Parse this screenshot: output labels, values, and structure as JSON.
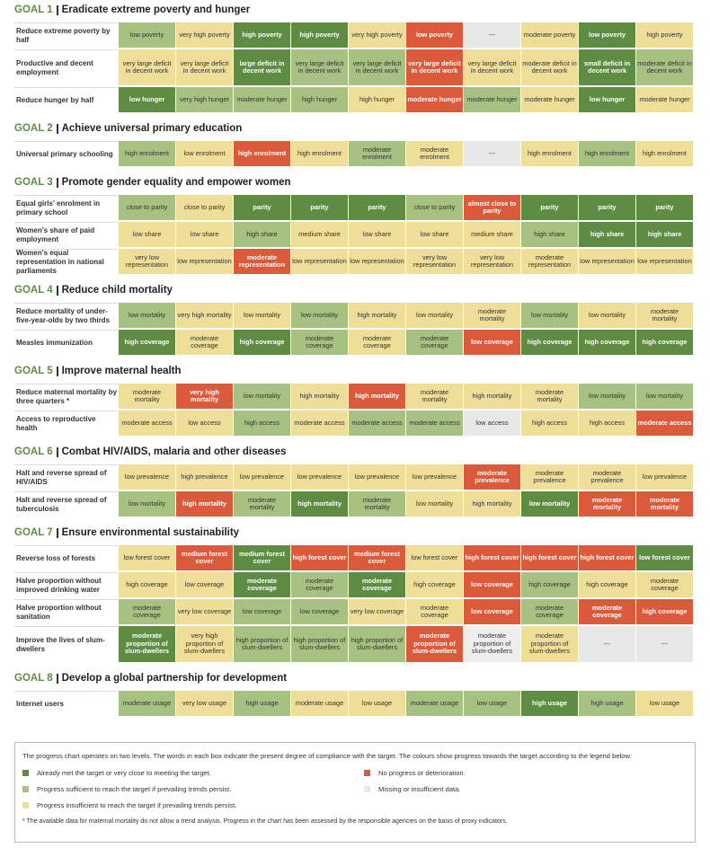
{
  "goals": [
    {
      "label": "GOAL 1",
      "title": "Eradicate extreme poverty and hunger",
      "rows": [
        {
          "target": "Reduce extreme poverty by half",
          "cells": [
            "low poverty",
            "very high poverty",
            "high poverty",
            "high poverty",
            "very high poverty",
            "low poverty",
            "---",
            "moderate poverty",
            "low poverty",
            "high poverty"
          ],
          "colors": [
            "#a7c182",
            "#efde98",
            "#5e8c42",
            "#5e8c42",
            "#efde98",
            "#db5a3c",
            "#e8e8e8",
            "#efde98",
            "#5e8c42",
            "#efde98"
          ]
        },
        {
          "target": "Productive and decent employment",
          "cells": [
            "very large deficit in decent work",
            "very large deficit in decent work",
            "large deficit in decent work",
            "very large deficit in decent work",
            "very large deficit in decent work",
            "very large deficit in decent work",
            "very large deficit in decent work",
            "moderate deficit in decent work",
            "small deficit in decent work",
            "moderate deficit in decent work"
          ],
          "colors": [
            "#efde98",
            "#efde98",
            "#5e8c42",
            "#a7c182",
            "#a7c182",
            "#db5a3c",
            "#efde98",
            "#efde98",
            "#5e8c42",
            "#a7c182"
          ]
        },
        {
          "target": "Reduce hunger by half",
          "cells": [
            "low hunger",
            "very high hunger",
            "moderate hunger",
            "high hunger",
            "high hunger",
            "moderate hunger",
            "moderate hunger",
            "moderate hunger",
            "low hunger",
            "moderate hunger"
          ],
          "colors": [
            "#5e8c42",
            "#a7c182",
            "#a7c182",
            "#a7c182",
            "#efde98",
            "#db5a3c",
            "#a7c182",
            "#efde98",
            "#5e8c42",
            "#efde98"
          ]
        }
      ]
    },
    {
      "label": "GOAL 2",
      "title": "Achieve universal primary education",
      "rows": [
        {
          "target": "Universal primary schooling",
          "cells": [
            "high enrolment",
            "low enrolment",
            "high enrolment",
            "high enrolment",
            "moderate enrolment",
            "moderate enrolment",
            "---",
            "high enrolment",
            "high enrolment",
            "high enrolment"
          ],
          "colors": [
            "#a7c182",
            "#efde98",
            "#db5a3c",
            "#efde98",
            "#a7c182",
            "#efde98",
            "#e8e8e8",
            "#efde98",
            "#a7c182",
            "#efde98"
          ]
        }
      ]
    },
    {
      "label": "GOAL 3",
      "title": "Promote gender equality and empower women",
      "rows": [
        {
          "target": "Equal girls' enrolment in primary school",
          "cells": [
            "close to parity",
            "close to parity",
            "parity",
            "parity",
            "parity",
            "close to parity",
            "almost close to parity",
            "parity",
            "parity",
            "parity"
          ],
          "colors": [
            "#a7c182",
            "#efde98",
            "#5e8c42",
            "#5e8c42",
            "#5e8c42",
            "#a7c182",
            "#db5a3c",
            "#5e8c42",
            "#5e8c42",
            "#5e8c42"
          ]
        },
        {
          "target": "Women's share of paid employment",
          "cells": [
            "low share",
            "low share",
            "high share",
            "medium share",
            "low share",
            "low share",
            "medium share",
            "high share",
            "high share",
            "high share"
          ],
          "colors": [
            "#efde98",
            "#efde98",
            "#a7c182",
            "#efde98",
            "#efde98",
            "#efde98",
            "#efde98",
            "#a7c182",
            "#5e8c42",
            "#5e8c42"
          ]
        },
        {
          "target": "Women's equal representation in national parliaments",
          "cells": [
            "very low representation",
            "low representation",
            "moderate representation",
            "low representation",
            "low representation",
            "very low representation",
            "very low representation",
            "moderate representation",
            "low representation",
            "low representation"
          ],
          "colors": [
            "#efde98",
            "#efde98",
            "#db5a3c",
            "#efde98",
            "#efde98",
            "#efde98",
            "#efde98",
            "#efde98",
            "#efde98",
            "#efde98"
          ]
        }
      ]
    },
    {
      "label": "GOAL 4",
      "title": "Reduce child mortality",
      "rows": [
        {
          "target": "Reduce mortality of under-five-year-olds by two thirds",
          "cells": [
            "low mortality",
            "very high mortality",
            "low mortality",
            "low mortality",
            "high mortality",
            "low mortality",
            "moderate mortality",
            "low mortality",
            "low mortality",
            "moderate mortality"
          ],
          "colors": [
            "#a7c182",
            "#efde98",
            "#efde98",
            "#a7c182",
            "#efde98",
            "#efde98",
            "#efde98",
            "#a7c182",
            "#efde98",
            "#efde98"
          ]
        },
        {
          "target": "Measles immunization",
          "cells": [
            "high coverage",
            "moderate coverage",
            "high coverage",
            "moderate coverage",
            "moderate coverage",
            "moderate coverage",
            "low coverage",
            "high coverage",
            "high coverage",
            "high coverage"
          ],
          "colors": [
            "#5e8c42",
            "#efde98",
            "#5e8c42",
            "#a7c182",
            "#efde98",
            "#a7c182",
            "#db5a3c",
            "#5e8c42",
            "#5e8c42",
            "#5e8c42"
          ]
        }
      ]
    },
    {
      "label": "GOAL 5",
      "title": "Improve maternal health",
      "rows": [
        {
          "target": "Reduce maternal mortality by three quarters *",
          "cells": [
            "moderate mortality",
            "very high mortality",
            "low mortality",
            "high mortality",
            "high mortality",
            "moderate mortality",
            "high mortality",
            "moderate mortality",
            "low mortality",
            "low mortality"
          ],
          "colors": [
            "#efde98",
            "#db5a3c",
            "#a7c182",
            "#efde98",
            "#db5a3c",
            "#efde98",
            "#efde98",
            "#efde98",
            "#a7c182",
            "#a7c182"
          ]
        },
        {
          "target": "Access to reproductive health",
          "cells": [
            "moderate access",
            "low access",
            "high access",
            "moderate access",
            "moderate access",
            "moderate access",
            "low access",
            "high access",
            "high access",
            "moderate access"
          ],
          "colors": [
            "#efde98",
            "#efde98",
            "#a7c182",
            "#efde98",
            "#a7c182",
            "#a7c182",
            "#e8e8e8",
            "#efde98",
            "#efde98",
            "#db5a3c"
          ]
        }
      ]
    },
    {
      "label": "GOAL 6",
      "title": "Combat HIV/AIDS, malaria and other diseases",
      "rows": [
        {
          "target": "Halt and reverse spread of HIV/AIDS",
          "cells": [
            "low prevalence",
            "high prevalence",
            "low prevalence",
            "low prevalence",
            "low prevalence",
            "low prevalence",
            "moderate prevalence",
            "moderate prevalence",
            "moderate prevalence",
            "low prevalence"
          ],
          "colors": [
            "#efde98",
            "#efde98",
            "#efde98",
            "#efde98",
            "#efde98",
            "#efde98",
            "#db5a3c",
            "#efde98",
            "#efde98",
            "#efde98"
          ]
        },
        {
          "target": "Halt and reverse spread of tuberculosis",
          "cells": [
            "low mortality",
            "high mortality",
            "moderate mortality",
            "high mortality",
            "moderate mortality",
            "low mortality",
            "high mortality",
            "low mortality",
            "moderate mortality",
            "moderate mortality"
          ],
          "colors": [
            "#a7c182",
            "#db5a3c",
            "#a7c182",
            "#5e8c42",
            "#a7c182",
            "#efde98",
            "#efde98",
            "#5e8c42",
            "#db5a3c",
            "#db5a3c"
          ]
        }
      ]
    },
    {
      "label": "GOAL 7",
      "title": "Ensure environmental sustainability",
      "rows": [
        {
          "target": "Reverse loss of forests",
          "cells": [
            "low forest cover",
            "medium forest cover",
            "medium forest cover",
            "high forest cover",
            "medium forest cover",
            "low forest cover",
            "high forest cover",
            "high forest cover",
            "high forest cover",
            "low forest cover"
          ],
          "colors": [
            "#efde98",
            "#db5a3c",
            "#5e8c42",
            "#db5a3c",
            "#db5a3c",
            "#efde98",
            "#db5a3c",
            "#db5a3c",
            "#db5a3c",
            "#5e8c42"
          ]
        },
        {
          "target": "Halve proportion without improved drinking water",
          "cells": [
            "high coverage",
            "low coverage",
            "moderate coverage",
            "moderate coverage",
            "moderate coverage",
            "high coverage",
            "low coverage",
            "high coverage",
            "high coverage",
            "moderate coverage"
          ],
          "colors": [
            "#efde98",
            "#efde98",
            "#5e8c42",
            "#a7c182",
            "#5e8c42",
            "#efde98",
            "#db5a3c",
            "#a7c182",
            "#efde98",
            "#efde98"
          ]
        },
        {
          "target": "Halve proportion without sanitation",
          "cells": [
            "moderate coverage",
            "very low coverage",
            "low coverage",
            "low coverage",
            "very low coverage",
            "moderate coverage",
            "low coverage",
            "moderate coverage",
            "moderate coverage",
            "high coverage"
          ],
          "colors": [
            "#a7c182",
            "#efde98",
            "#a7c182",
            "#a7c182",
            "#efde98",
            "#efde98",
            "#db5a3c",
            "#a7c182",
            "#db5a3c",
            "#db5a3c"
          ]
        },
        {
          "target": "Improve the lives of slum-dwellers",
          "cells": [
            "moderate proportion of slum-dwellers",
            "very high proportion of slum-dwellers",
            "high proportion of slum-dwellers",
            "high proportion of slum-dwellers",
            "high proportion of slum-dwellers",
            "moderate proportion of slum-dwellers",
            "moderate proportion of slum-dwellers",
            "moderate proportion of slum-dwellers",
            "---",
            "---"
          ],
          "colors": [
            "#5e8c42",
            "#efde98",
            "#a7c182",
            "#a7c182",
            "#a7c182",
            "#db5a3c",
            "#eeeeee",
            "#efde98",
            "#e8e8e8",
            "#e8e8e8"
          ]
        }
      ]
    },
    {
      "label": "GOAL 8",
      "title": "Develop a global partnership for development",
      "rows": [
        {
          "target": "Internet users",
          "cells": [
            "moderate usage",
            "very low usage",
            "high usage",
            "moderate usage",
            "low usage",
            "moderate usage",
            "low usage",
            "high usage",
            "high usage",
            "low usage"
          ],
          "colors": [
            "#a7c182",
            "#efde98",
            "#a7c182",
            "#efde98",
            "#efde98",
            "#a7c182",
            "#a7c182",
            "#5e8c42",
            "#a7c182",
            "#efde98"
          ]
        }
      ]
    }
  ],
  "legend": {
    "intro": "The progress chart operates on two levels. The words in each box indicate the present degree of compliance with the target. The colours show progress towards the target according to the legend below:",
    "items": [
      {
        "color": "#5e8c42",
        "text": "Already met the target or very close to meeting the target."
      },
      {
        "color": "#db5a3c",
        "text": "No progress or deterioration."
      },
      {
        "color": "#a7c182",
        "text": "Progress sufficient to reach the target if prevailing trends persist."
      },
      {
        "color": "#e8e8e8",
        "text": "Missing or insufficient data."
      },
      {
        "color": "#efde98",
        "text": "Progress insufficient to reach the target if prevailing trends persist."
      }
    ],
    "footnote": "* The available data for maternal mortality do not allow a trend analysis. Progress in the chart has been assessed by the responsible agencies on the basis of proxy indicators."
  }
}
